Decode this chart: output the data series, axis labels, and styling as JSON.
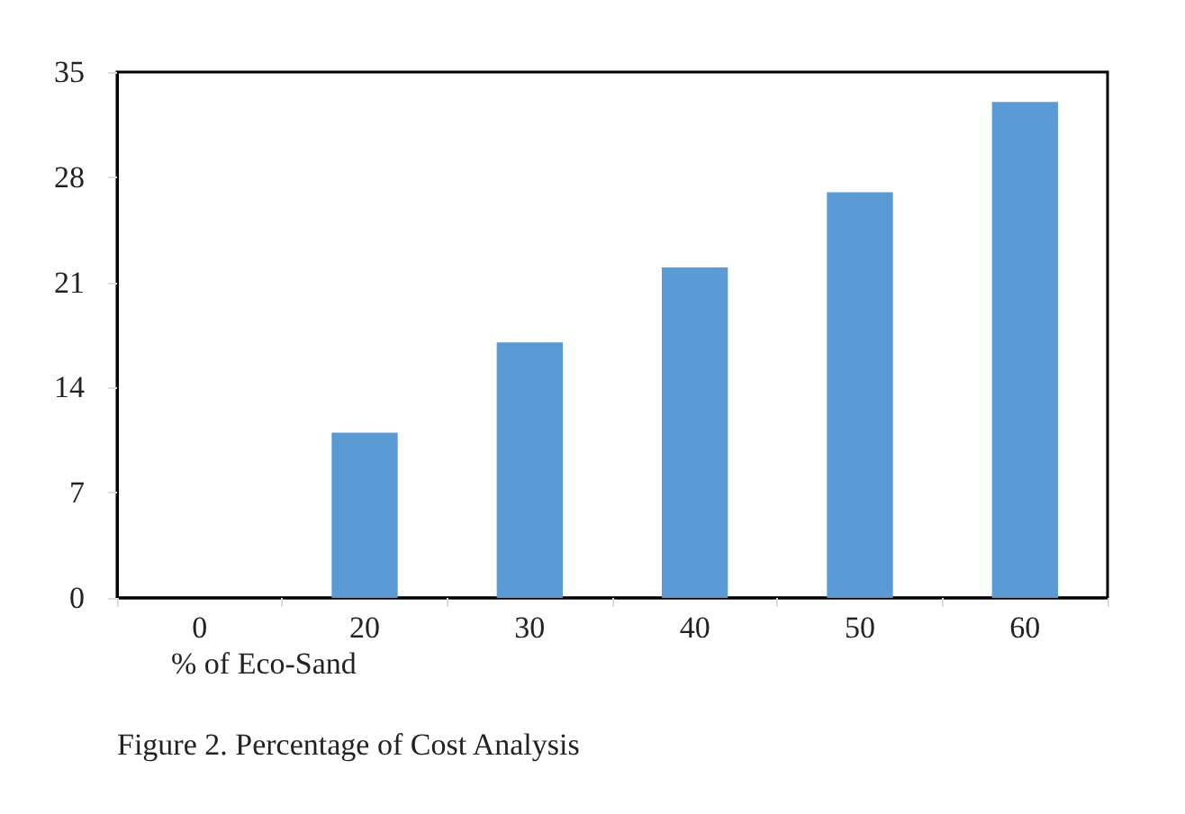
{
  "chart_data": {
    "type": "bar",
    "title": "Figure 2. Percentage of Cost Analysis",
    "xlabel": "% of Eco-Sand",
    "categories": [
      "0",
      "20",
      "30",
      "40",
      "50",
      "60"
    ],
    "values": [
      0,
      11,
      17,
      22,
      27,
      33
    ],
    "color": "#5b9bd5",
    "ylim": [
      0,
      35
    ],
    "yticks": [
      0,
      7,
      14,
      21,
      28,
      35
    ],
    "grid": false
  }
}
